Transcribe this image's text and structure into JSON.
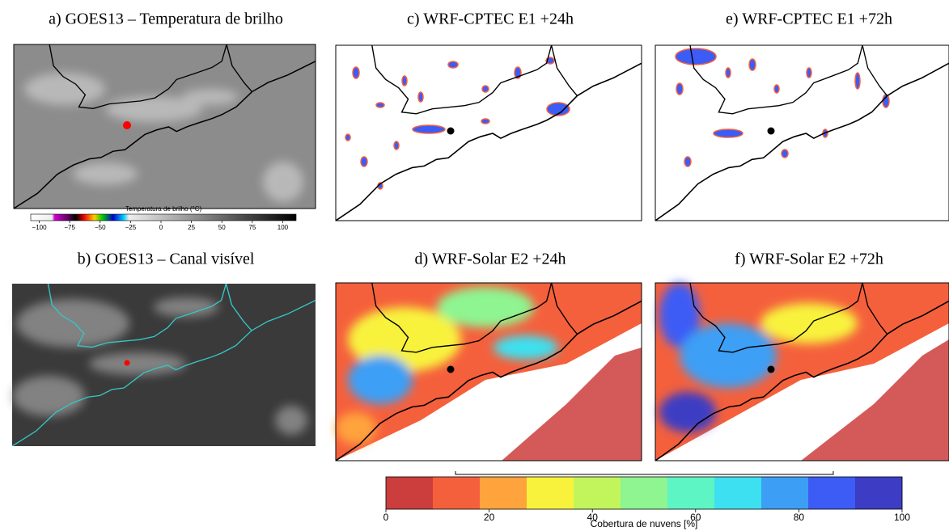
{
  "panels": [
    {
      "label": "a) GOES13 – Temperatura de brilho"
    },
    {
      "label": "b) GOES13 – Canal visível"
    },
    {
      "label": "c) WRF-CPTEC E1 +24h"
    },
    {
      "label": "d) WRF-Solar E2 +24h"
    },
    {
      "label": "e) WRF-CPTEC E1 +72h"
    },
    {
      "label": "f) WRF-Solar E2 +72h"
    }
  ],
  "colorbar_temperature": {
    "title": "Temperatura de brilho (°C)",
    "range": [
      -107,
      111
    ],
    "ticks": [
      {
        "value": -100,
        "label": "−100"
      },
      {
        "value": -75,
        "label": "−75"
      },
      {
        "value": -50,
        "label": "−50"
      },
      {
        "value": -25,
        "label": "−25"
      },
      0,
      25,
      50,
      75,
      100
    ]
  },
  "colorbar_cloud": {
    "title": "Cobertura de nuvens [%]",
    "range": [
      0,
      100
    ],
    "ticks": [
      0,
      20,
      40,
      60,
      80,
      100
    ],
    "colors": [
      "#cc3d3d",
      "#f5603c",
      "#ffa33c",
      "#f8f23c",
      "#c2f55c",
      "#8ef591",
      "#5ef5c5",
      "#3ce0f0",
      "#3c9ff5",
      "#3c5cf5",
      "#3c3cc4"
    ]
  }
}
